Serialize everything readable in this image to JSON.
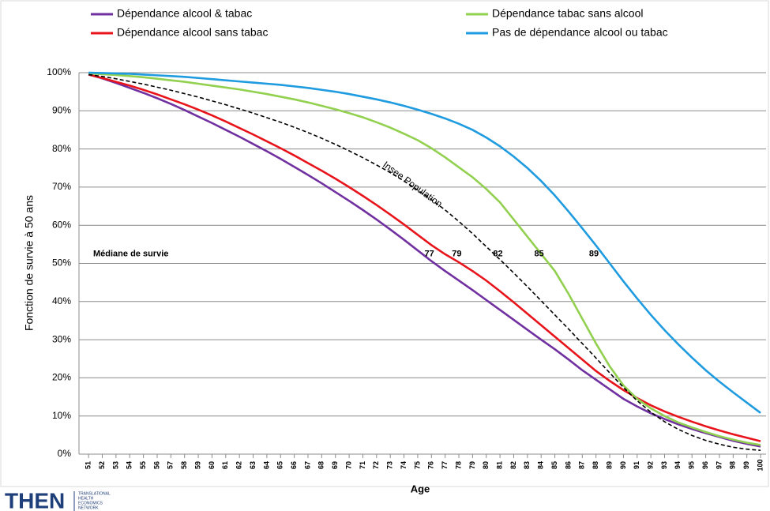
{
  "chart_data": {
    "type": "line",
    "ylabel": "Fonction de survie à 50 ans",
    "xlabel": "Age",
    "x": [
      51,
      52,
      53,
      54,
      55,
      56,
      57,
      58,
      59,
      60,
      61,
      62,
      63,
      64,
      65,
      66,
      67,
      68,
      69,
      70,
      71,
      72,
      73,
      74,
      75,
      76,
      77,
      78,
      79,
      80,
      81,
      82,
      83,
      84,
      85,
      86,
      87,
      88,
      89,
      90,
      91,
      92,
      93,
      94,
      95,
      96,
      97,
      98,
      99,
      100
    ],
    "xticks": [
      51,
      52,
      53,
      54,
      55,
      56,
      57,
      58,
      59,
      60,
      61,
      62,
      63,
      64,
      65,
      66,
      67,
      68,
      69,
      70,
      71,
      72,
      73,
      74,
      75,
      76,
      77,
      78,
      79,
      80,
      81,
      82,
      83,
      84,
      85,
      86,
      87,
      88,
      89,
      90,
      91,
      92,
      93,
      94,
      95,
      96,
      97,
      98,
      99,
      100
    ],
    "xlim": [
      50.3,
      100.4
    ],
    "ylim": [
      0,
      100
    ],
    "yticks": [
      {
        "value": 0,
        "label": "0%"
      },
      {
        "value": 10,
        "label": "10%"
      },
      {
        "value": 20,
        "label": "20%"
      },
      {
        "value": 30,
        "label": "30%"
      },
      {
        "value": 40,
        "label": "40%"
      },
      {
        "value": 50,
        "label": "50%"
      },
      {
        "value": 60,
        "label": "60%"
      },
      {
        "value": 70,
        "label": "70%"
      },
      {
        "value": 80,
        "label": "80%"
      },
      {
        "value": 90,
        "label": "90%"
      },
      {
        "value": 100,
        "label": "100%"
      }
    ],
    "grid": true,
    "series": [
      {
        "name": "Dépendance alcool & tabac",
        "color": "#7030a0",
        "values": [
          99.5,
          98.5,
          97.3,
          96,
          94.7,
          93.3,
          91.8,
          90.2,
          88.5,
          86.8,
          85,
          83.2,
          81.3,
          79.4,
          77.4,
          75.3,
          73.2,
          71,
          68.7,
          66.4,
          64,
          61.5,
          58.9,
          56.2,
          53.4,
          50.6,
          48,
          45.5,
          43,
          40.4,
          37.8,
          35.2,
          32.6,
          30,
          27.5,
          24.8,
          22,
          19.5,
          17,
          14.5,
          12.5,
          10.7,
          9.2,
          7.8,
          6.6,
          5.5,
          4.5,
          3.5,
          2.7,
          2
        ]
      },
      {
        "name": "Dépendance alcool sans tabac",
        "color": "#e8141b",
        "values": [
          99.5,
          98.6,
          97.6,
          96.6,
          95.5,
          94.3,
          93,
          91.7,
          90.3,
          88.8,
          87.2,
          85.5,
          83.8,
          82,
          80.2,
          78.3,
          76.3,
          74.3,
          72.2,
          70,
          67.7,
          65.3,
          62.8,
          60.2,
          57.5,
          54.8,
          52.4,
          50.3,
          48,
          45.5,
          42.7,
          39.8,
          36.8,
          33.8,
          30.8,
          27.8,
          24.8,
          21.8,
          19.2,
          16.8,
          14.7,
          12.8,
          11.2,
          9.8,
          8.5,
          7.3,
          6.2,
          5.2,
          4.3,
          3.4
        ]
      },
      {
        "name": "Dépendance tabac sans alcool",
        "color": "#92d050",
        "values": [
          99.8,
          99.6,
          99.4,
          99.1,
          98.8,
          98.4,
          98,
          97.6,
          97.1,
          96.6,
          96.1,
          95.6,
          95,
          94.4,
          93.7,
          93,
          92.2,
          91.3,
          90.4,
          89.4,
          88.3,
          87,
          85.6,
          84,
          82.3,
          80.2,
          77.8,
          75.2,
          72.6,
          69.5,
          66,
          61.5,
          57,
          52.5,
          48,
          42,
          35.5,
          29,
          23,
          18,
          14.5,
          12,
          10,
          8.3,
          7,
          5.8,
          4.7,
          3.8,
          3,
          2.4
        ]
      },
      {
        "name": "Pas de dépendance alcool ou tabac",
        "color": "#1f9be0",
        "values": [
          100,
          99.9,
          99.8,
          99.7,
          99.5,
          99.3,
          99.1,
          98.9,
          98.6,
          98.3,
          98,
          97.7,
          97.4,
          97.1,
          96.8,
          96.4,
          96,
          95.5,
          95,
          94.4,
          93.7,
          93,
          92.2,
          91.3,
          90.3,
          89.2,
          88,
          86.6,
          85,
          83,
          80.7,
          78,
          75,
          71.6,
          67.8,
          63.6,
          59.2,
          54.7,
          50,
          45.3,
          40.8,
          36.5,
          32.5,
          28.8,
          25.3,
          22,
          19,
          16.2,
          13.5,
          10.8
        ]
      },
      {
        "name": "Insee Population",
        "color": "#000000",
        "dashed": true,
        "in_legend": false,
        "values": [
          99.5,
          99,
          98.4,
          97.7,
          97,
          96.2,
          95.4,
          94.5,
          93.6,
          92.6,
          91.6,
          90.5,
          89.4,
          88.2,
          87,
          85.7,
          84.3,
          82.8,
          81.2,
          79.5,
          77.7,
          75.8,
          73.8,
          71.6,
          69.2,
          66.7,
          64,
          61,
          57.8,
          54.4,
          51,
          47.5,
          43.9,
          40.2,
          36.5,
          32.8,
          29,
          25.2,
          21.3,
          17.5,
          14,
          11,
          8.5,
          6.5,
          4.9,
          3.6,
          2.6,
          1.8,
          1.3,
          1
        ]
      }
    ],
    "median": {
      "label": "Médiane de survie",
      "y": 50,
      "ages": [
        77,
        79,
        82,
        85,
        89
      ]
    },
    "logo": {
      "name": "THEN",
      "lines": [
        "TRANSLATIONAL",
        "HEALTH",
        "ECONOMICS",
        "NETWORK"
      ]
    }
  }
}
